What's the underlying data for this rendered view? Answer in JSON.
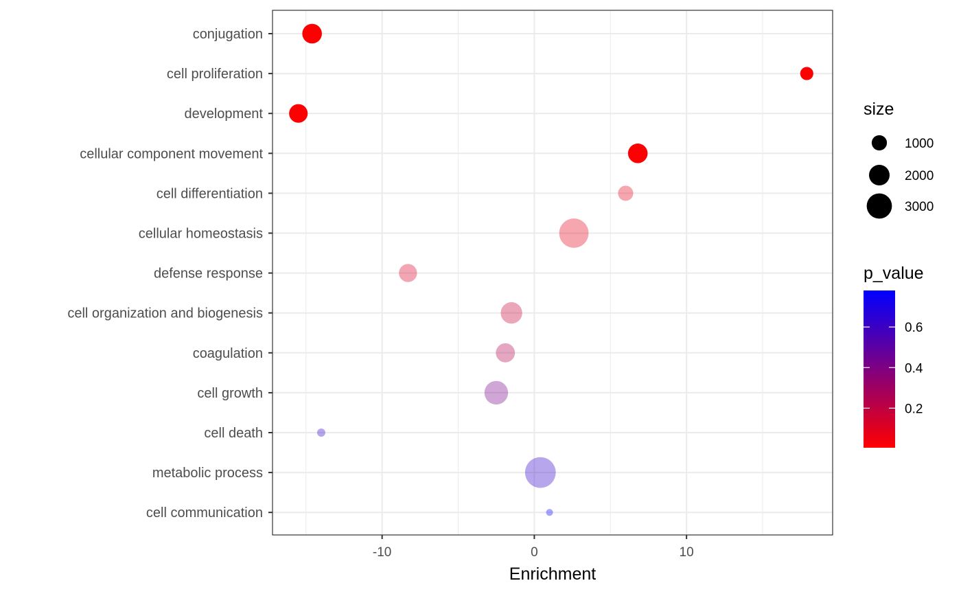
{
  "chart_data": {
    "type": "scatter",
    "title": "",
    "xlabel": "Enrichment",
    "ylabel": "",
    "xlim": [
      -17.2,
      19.6
    ],
    "x_ticks": [
      -10,
      0,
      10
    ],
    "grid": true,
    "categories": [
      "conjugation",
      "cell proliferation",
      "development",
      "cellular component movement",
      "cell differentiation",
      "cellular homeostasis",
      "defense response",
      "cell organization and biogenesis",
      "coagulation",
      "cell growth",
      "cell death",
      "metabolic process",
      "cell communication"
    ],
    "points": [
      {
        "category": "conjugation",
        "x": -14.6,
        "size": 2000,
        "p_value": 0.01
      },
      {
        "category": "cell proliferation",
        "x": 17.9,
        "size": 900,
        "p_value": 0.01
      },
      {
        "category": "development",
        "x": -15.5,
        "size": 1800,
        "p_value": 0.01
      },
      {
        "category": "cellular component movement",
        "x": 6.8,
        "size": 2000,
        "p_value": 0.01
      },
      {
        "category": "cell differentiation",
        "x": 6.0,
        "size": 1200,
        "p_value": 0.08
      },
      {
        "category": "cellular homeostasis",
        "x": 2.6,
        "size": 4500,
        "p_value": 0.08
      },
      {
        "category": "defense response",
        "x": -8.3,
        "size": 1700,
        "p_value": 0.12
      },
      {
        "category": "cell organization and biogenesis",
        "x": -1.5,
        "size": 2400,
        "p_value": 0.18
      },
      {
        "category": "coagulation",
        "x": -1.9,
        "size": 1900,
        "p_value": 0.24
      },
      {
        "category": "cell growth",
        "x": -2.5,
        "size": 2900,
        "p_value": 0.42
      },
      {
        "category": "cell death",
        "x": -14.0,
        "size": 350,
        "p_value": 0.62
      },
      {
        "category": "metabolic process",
        "x": 0.4,
        "size": 4900,
        "p_value": 0.62
      },
      {
        "category": "cell communication",
        "x": 1.0,
        "size": 250,
        "p_value": 0.77
      }
    ],
    "size_legend": {
      "title": "size",
      "values": [
        1000,
        2000,
        3000
      ],
      "labels": [
        "1000",
        "2000",
        "3000"
      ]
    },
    "color_legend": {
      "title": "p_value",
      "low_color": "#ff0000",
      "high_color": "#0000ff",
      "range": [
        0.005,
        0.78
      ],
      "ticks": [
        0.2,
        0.4,
        0.6
      ],
      "tick_labels": [
        "0.2",
        "0.4",
        "0.6"
      ]
    },
    "alpha_significant": 1.0,
    "alpha_other": 0.35,
    "significance_threshold": 0.05
  }
}
